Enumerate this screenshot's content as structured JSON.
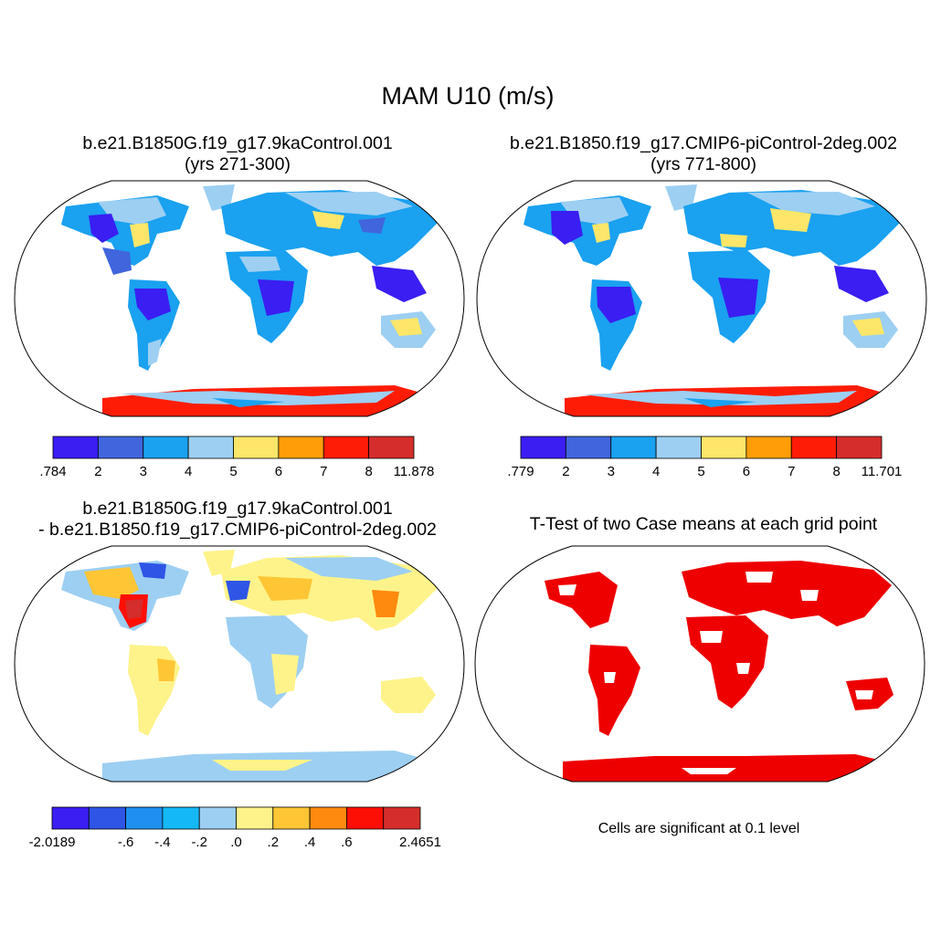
{
  "main_title": "MAM U10 (m/s)",
  "panels": {
    "top_left": {
      "title_line1": "b.e21.B1850G.f19_g17.9kaControl.001",
      "title_line2": "(yrs 271-300)",
      "colorbar": {
        "colors": [
          "#3a1ef2",
          "#4065dd",
          "#1aa1f0",
          "#9dcff2",
          "#fde669",
          "#fe9d07",
          "#fe1c06",
          "#d42d2b"
        ],
        "labels": [
          ".784",
          "2",
          "3",
          "4",
          "5",
          "6",
          "7",
          "8",
          "11.878"
        ]
      }
    },
    "top_right": {
      "title_line1": "b.e21.B1850.f19_g17.CMIP6-piControl-2deg.002",
      "title_line2": "(yrs 771-800)",
      "colorbar": {
        "colors": [
          "#3a1ef2",
          "#4065dd",
          "#1aa1f0",
          "#9dcff2",
          "#fde669",
          "#fe9d07",
          "#fe1c06",
          "#d42d2b"
        ],
        "labels": [
          ".779",
          "2",
          "3",
          "4",
          "5",
          "6",
          "7",
          "8",
          "11.701"
        ]
      }
    },
    "bottom_left": {
      "title_line1": "b.e21.B1850G.f19_g17.9kaControl.001",
      "title_line2": "- b.e21.B1850.f19_g17.CMIP6-piControl-2deg.002",
      "colorbar": {
        "colors": [
          "#3a1ef2",
          "#2e55e6",
          "#1f8ff0",
          "#14b8f5",
          "#9dcff2",
          "#fef38a",
          "#fec635",
          "#fe8a0f",
          "#fe0f06",
          "#d42d2b"
        ],
        "labels": [
          "-2.0189",
          "",
          "-.6",
          "-.4",
          "-.2",
          ".0",
          ".2",
          ".4",
          ".6",
          "",
          "2.4651"
        ]
      }
    },
    "bottom_right": {
      "title": "T-Test of two Case means at each grid point",
      "note": "Cells are significant at 0.1 level",
      "fill_color": "#ee0000"
    }
  }
}
